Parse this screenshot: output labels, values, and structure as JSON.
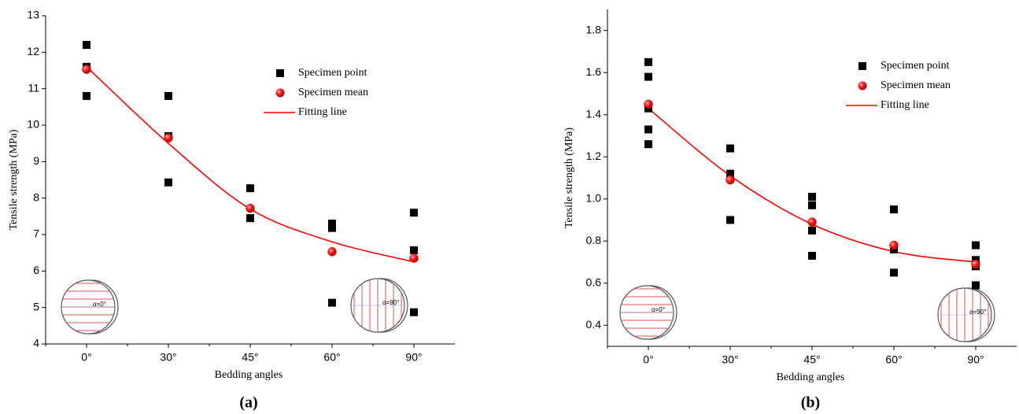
{
  "chart_data": [
    {
      "type": "scatter",
      "x_label": "Bedding angles",
      "y_label": "Tensile strength (MPa)",
      "panel_label": "(a)",
      "categories": [
        "0°",
        "30°",
        "45°",
        "60°",
        "90°"
      ],
      "ylim": [
        4,
        13
      ],
      "yticks": [
        4,
        5,
        6,
        7,
        8,
        9,
        10,
        11,
        12,
        13
      ],
      "annotations": [
        "α=0°",
        "α=90°"
      ],
      "series": [
        {
          "name": "Specimen point",
          "color": "#000000",
          "marker": "square",
          "x": [
            "0°",
            "0°",
            "0°",
            "30°",
            "30°",
            "30°",
            "45°",
            "45°",
            "60°",
            "60°",
            "60°",
            "90°",
            "90°",
            "90°"
          ],
          "values": [
            12.2,
            11.6,
            10.8,
            10.8,
            9.7,
            8.43,
            8.27,
            7.45,
            7.3,
            7.18,
            5.13,
            7.6,
            6.57,
            4.87
          ]
        },
        {
          "name": "Specimen mean",
          "color": "#e00000",
          "marker": "circle",
          "x": [
            "0°",
            "30°",
            "45°",
            "60°",
            "90°"
          ],
          "values": [
            11.53,
            9.65,
            7.72,
            6.53,
            6.35
          ]
        },
        {
          "name": "Fitting line",
          "color": "#ff0000",
          "marker": "line",
          "x": [
            "0°",
            "30°",
            "45°",
            "60°",
            "90°"
          ],
          "values": [
            11.6,
            9.5,
            7.7,
            6.8,
            6.25
          ]
        }
      ]
    },
    {
      "type": "scatter",
      "x_label": "Bedding angles",
      "y_label": "Tensile strength (MPa)",
      "panel_label": "(b)",
      "categories": [
        "0°",
        "30°",
        "45°",
        "60°",
        "90°"
      ],
      "ylim": [
        0.3,
        1.9
      ],
      "yticks": [
        0.4,
        0.6,
        0.8,
        {
          "value": 1,
          "label": "1.0"
        },
        1.2,
        1.4,
        1.6,
        1.8
      ],
      "annotations": [
        "α=0°",
        "α=90°"
      ],
      "series": [
        {
          "name": "Specimen point",
          "color": "#000000",
          "marker": "square",
          "x": [
            "0°",
            "0°",
            "0°",
            "0°",
            "0°",
            "30°",
            "30°",
            "30°",
            "45°",
            "45°",
            "45°",
            "45°",
            "60°",
            "60°",
            "60°",
            "90°",
            "90°",
            "90°",
            "90°"
          ],
          "values": [
            1.65,
            1.58,
            1.43,
            1.33,
            1.26,
            1.24,
            1.12,
            0.9,
            1.01,
            0.97,
            0.85,
            0.73,
            0.95,
            0.76,
            0.65,
            0.78,
            0.71,
            0.68,
            0.59
          ]
        },
        {
          "name": "Specimen mean",
          "color": "#e00000",
          "marker": "circle",
          "x": [
            "0°",
            "30°",
            "45°",
            "60°",
            "90°"
          ],
          "values": [
            1.45,
            1.09,
            0.89,
            0.78,
            0.69
          ]
        },
        {
          "name": "Fitting line",
          "color": "#ff0000",
          "marker": "line",
          "x": [
            "0°",
            "30°",
            "45°",
            "60°",
            "90°"
          ],
          "values": [
            1.43,
            1.11,
            0.88,
            0.75,
            0.7
          ]
        }
      ]
    }
  ]
}
